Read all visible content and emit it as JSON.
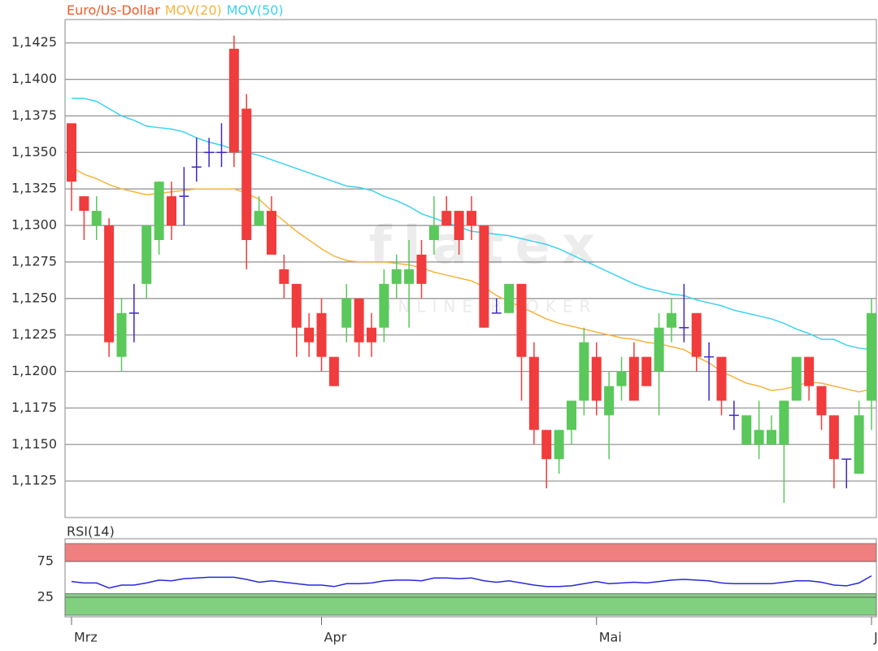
{
  "chart_data": [
    {
      "type": "candlestick",
      "name": "Euro/Us-Dollar",
      "name_color": "#f05a28",
      "color_up": "#5ac85a",
      "color_down": "#f03c3c",
      "color_flat": "#3c28c8",
      "watermark": {
        "title": "flatex",
        "subtitle": "ONLINE BROKER"
      },
      "categories": [
        "Mrz",
        null,
        null,
        null,
        null,
        null,
        null,
        null,
        null,
        null,
        null,
        null,
        null,
        null,
        null,
        null,
        null,
        null,
        null,
        null,
        "Apr",
        null,
        null,
        null,
        null,
        null,
        null,
        null,
        null,
        null,
        null,
        null,
        null,
        null,
        null,
        null,
        null,
        null,
        null,
        null,
        null,
        null,
        "Mai",
        null,
        null,
        null,
        null,
        null,
        null,
        null,
        null,
        null,
        null,
        null,
        null,
        null,
        null,
        null,
        null,
        null,
        null,
        null,
        null,
        null,
        "J"
      ],
      "open": [
        1.137,
        1.132,
        1.13,
        1.13,
        1.121,
        1.124,
        1.126,
        1.129,
        1.132,
        1.132,
        1.134,
        1.135,
        1.135,
        1.1421,
        1.138,
        1.13,
        1.131,
        1.127,
        1.126,
        1.123,
        1.124,
        1.121,
        1.123,
        1.125,
        1.123,
        1.123,
        1.126,
        1.126,
        1.128,
        1.129,
        1.131,
        1.131,
        1.131,
        1.13,
        1.124,
        1.124,
        1.126,
        1.121,
        1.116,
        1.114,
        1.116,
        1.118,
        1.121,
        1.117,
        1.119,
        1.121,
        1.121,
        1.12,
        1.123,
        1.123,
        1.124,
        1.121,
        1.121,
        1.117,
        1.115,
        1.115,
        1.115,
        1.115,
        1.118,
        1.121,
        1.119,
        1.117,
        1.114,
        1.113,
        1.118
      ],
      "high": [
        1.137,
        1.132,
        1.132,
        1.1305,
        1.125,
        1.126,
        1.13,
        1.133,
        1.133,
        1.134,
        1.136,
        1.136,
        1.137,
        1.143,
        1.139,
        1.132,
        1.132,
        1.128,
        1.126,
        1.124,
        1.125,
        1.121,
        1.126,
        1.125,
        1.124,
        1.127,
        1.128,
        1.129,
        1.129,
        1.132,
        1.132,
        1.131,
        1.132,
        1.13,
        1.125,
        1.126,
        1.126,
        1.122,
        1.116,
        1.116,
        1.118,
        1.123,
        1.122,
        1.12,
        1.121,
        1.122,
        1.121,
        1.124,
        1.125,
        1.126,
        1.124,
        1.122,
        1.121,
        1.118,
        1.117,
        1.118,
        1.117,
        1.118,
        1.121,
        1.121,
        1.119,
        1.117,
        1.114,
        1.118,
        1.125
      ],
      "low": [
        1.131,
        1.129,
        1.129,
        1.121,
        1.12,
        1.122,
        1.125,
        1.128,
        1.129,
        1.13,
        1.133,
        1.134,
        1.134,
        1.134,
        1.127,
        1.13,
        1.128,
        1.125,
        1.121,
        1.121,
        1.12,
        1.119,
        1.122,
        1.121,
        1.121,
        1.122,
        1.125,
        1.123,
        1.125,
        1.128,
        1.13,
        1.128,
        1.129,
        1.123,
        1.124,
        1.124,
        1.118,
        1.115,
        1.112,
        1.113,
        1.115,
        1.117,
        1.117,
        1.114,
        1.118,
        1.118,
        1.119,
        1.117,
        1.122,
        1.122,
        1.12,
        1.118,
        1.117,
        1.116,
        1.115,
        1.114,
        1.115,
        1.111,
        1.118,
        1.118,
        1.116,
        1.112,
        1.112,
        1.113,
        1.116
      ],
      "close": [
        1.133,
        1.131,
        1.131,
        1.122,
        1.124,
        1.124,
        1.13,
        1.133,
        1.13,
        1.132,
        1.134,
        1.135,
        1.135,
        1.135,
        1.129,
        1.131,
        1.128,
        1.126,
        1.123,
        1.122,
        1.121,
        1.119,
        1.125,
        1.122,
        1.122,
        1.126,
        1.127,
        1.127,
        1.126,
        1.13,
        1.13,
        1.129,
        1.13,
        1.123,
        1.124,
        1.126,
        1.121,
        1.116,
        1.114,
        1.116,
        1.118,
        1.122,
        1.118,
        1.119,
        1.12,
        1.118,
        1.119,
        1.123,
        1.124,
        1.123,
        1.121,
        1.121,
        1.118,
        1.117,
        1.117,
        1.116,
        1.116,
        1.118,
        1.121,
        1.119,
        1.117,
        1.114,
        1.114,
        1.117,
        1.124
      ],
      "overlays": [
        {
          "name": "MOV(20)",
          "color": "#f5b43c",
          "values": [
            1.134,
            1.1335,
            1.1332,
            1.1328,
            1.1325,
            1.1323,
            1.1321,
            1.1322,
            1.1323,
            1.1324,
            1.1325,
            1.1325,
            1.1325,
            1.1325,
            1.1322,
            1.1318,
            1.131,
            1.1303,
            1.1296,
            1.129,
            1.1284,
            1.1279,
            1.1276,
            1.1275,
            1.1275,
            1.1275,
            1.1274,
            1.1273,
            1.1271,
            1.1268,
            1.1266,
            1.1264,
            1.1262,
            1.1258,
            1.1252,
            1.1248,
            1.1244,
            1.124,
            1.1236,
            1.1233,
            1.1231,
            1.1229,
            1.1227,
            1.1225,
            1.1223,
            1.1222,
            1.122,
            1.1219,
            1.1217,
            1.1215,
            1.121,
            1.1206,
            1.12,
            1.1196,
            1.1192,
            1.119,
            1.1187,
            1.1188,
            1.119,
            1.1193,
            1.1192,
            1.119,
            1.1188,
            1.1186,
            1.1188
          ]
        },
        {
          "name": "MOV(50)",
          "color": "#3cd2f0",
          "values": [
            1.1387,
            1.1387,
            1.1385,
            1.138,
            1.1375,
            1.1372,
            1.1368,
            1.1367,
            1.1366,
            1.1364,
            1.136,
            1.1357,
            1.1355,
            1.1352,
            1.135,
            1.1348,
            1.1345,
            1.1342,
            1.1339,
            1.1336,
            1.1333,
            1.133,
            1.1327,
            1.1326,
            1.1324,
            1.132,
            1.1317,
            1.1313,
            1.1308,
            1.1305,
            1.1302,
            1.1299,
            1.1296,
            1.1295,
            1.1294,
            1.1293,
            1.1291,
            1.1289,
            1.1287,
            1.1284,
            1.128,
            1.1276,
            1.1272,
            1.1268,
            1.1264,
            1.126,
            1.1257,
            1.1255,
            1.1253,
            1.1252,
            1.1249,
            1.1247,
            1.1245,
            1.1242,
            1.124,
            1.1238,
            1.1236,
            1.1233,
            1.1229,
            1.1226,
            1.1222,
            1.1222,
            1.1218,
            1.1216,
            1.1215
          ]
        }
      ],
      "ylim": [
        1.11,
        1.1441
      ],
      "yticks": [
        {
          "value": 1.1125,
          "label": "1,1125"
        },
        {
          "value": 1.115,
          "label": "1,1150"
        },
        {
          "value": 1.1175,
          "label": "1,1175"
        },
        {
          "value": 1.12,
          "label": "1,1200"
        },
        {
          "value": 1.1225,
          "label": "1,1225"
        },
        {
          "value": 1.125,
          "label": "1,1250"
        },
        {
          "value": 1.1275,
          "label": "1,1275"
        },
        {
          "value": 1.13,
          "label": "1,1300"
        },
        {
          "value": 1.1325,
          "label": "1,1325"
        },
        {
          "value": 1.135,
          "label": "1,1350"
        },
        {
          "value": 1.1375,
          "label": "1,1375"
        },
        {
          "value": 1.14,
          "label": "1,1400"
        },
        {
          "value": 1.1425,
          "label": "1,1425"
        }
      ],
      "grid": true
    },
    {
      "type": "line",
      "series": [
        {
          "name": "RSI(14)",
          "color": "#2828dc",
          "values": [
            47,
            45,
            45,
            38,
            42,
            42,
            45,
            49,
            48,
            51,
            52,
            53,
            53,
            53,
            50,
            46,
            48,
            46,
            44,
            42,
            42,
            40,
            44,
            44,
            45,
            48,
            49,
            49,
            48,
            52,
            52,
            51,
            52,
            48,
            46,
            48,
            45,
            42,
            40,
            40,
            41,
            44,
            47,
            44,
            45,
            46,
            45,
            47,
            49,
            50,
            49,
            48,
            45,
            44,
            44,
            44,
            44,
            46,
            48,
            48,
            46,
            42,
            41,
            45,
            55
          ]
        }
      ],
      "bands": [
        {
          "from": 75,
          "to": 100,
          "color": "#f08080"
        },
        {
          "from": 0,
          "to": 30,
          "color": "#80d080"
        }
      ],
      "ylim": [
        0,
        100
      ],
      "yticks": [
        25,
        75
      ],
      "grid": true
    }
  ]
}
